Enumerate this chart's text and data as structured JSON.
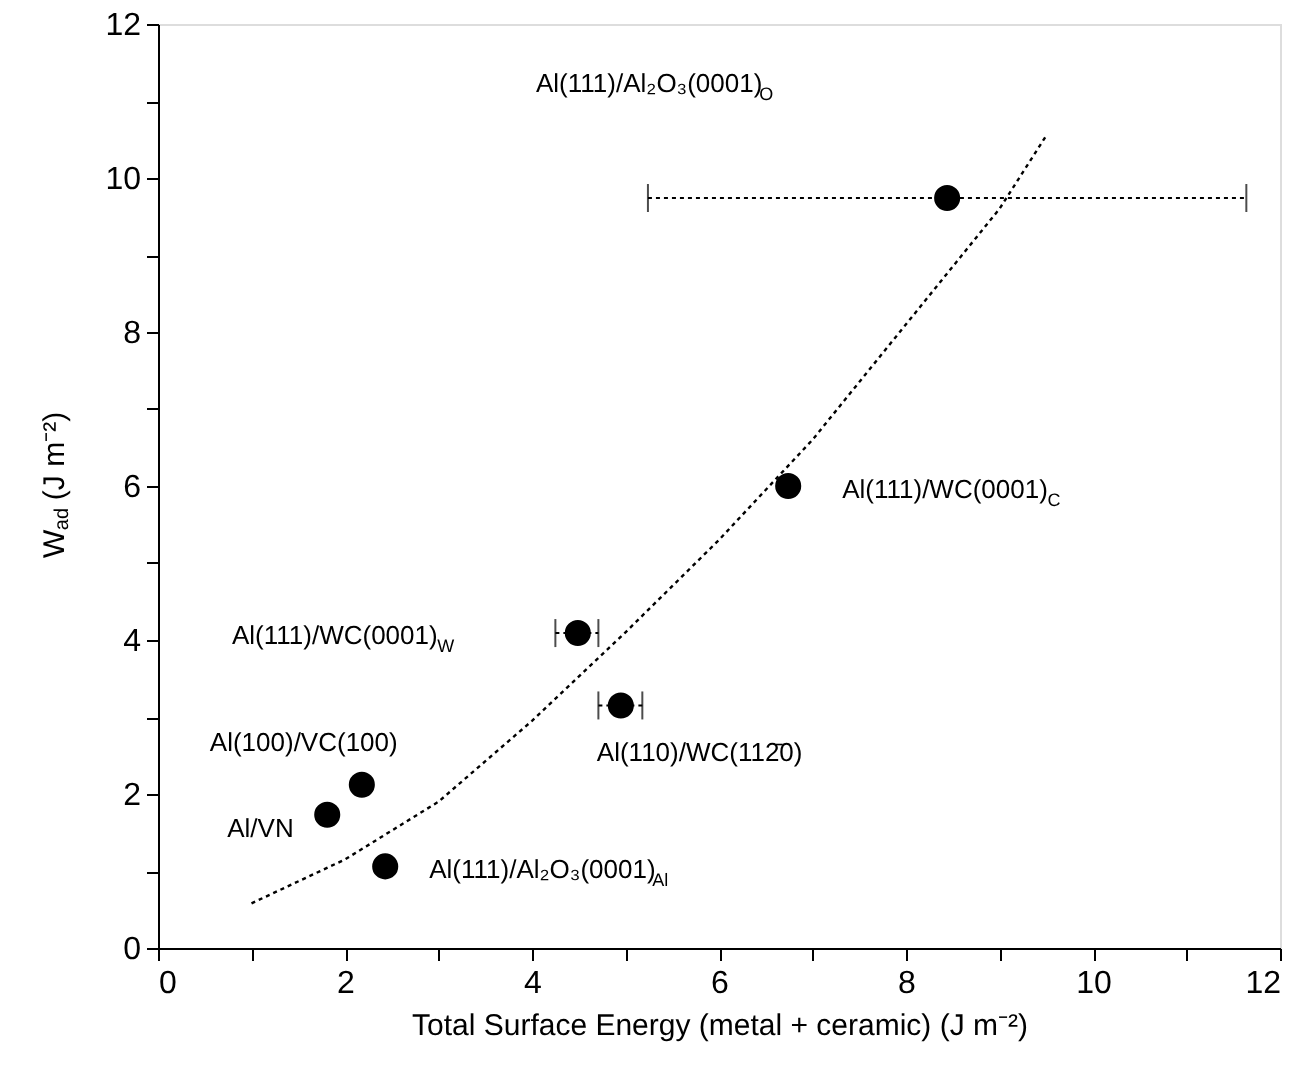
{
  "chart_data": {
    "type": "scatter",
    "xlabel": "Total Surface Energy (metal + ceramic) (J m⁻²)",
    "ylabel": "W$_{ad}$ (J m⁻²)",
    "xlim": [
      0,
      12
    ],
    "ylim": [
      0,
      12
    ],
    "xticks": [
      0,
      {
        "value": 1,
        "label": null
      },
      2,
      {
        "value": 3,
        "label": null
      },
      4,
      {
        "value": 5,
        "label": null
      },
      6,
      {
        "value": 7,
        "label": null
      },
      8,
      {
        "value": 9,
        "label": null
      },
      10,
      {
        "value": 11,
        "label": null
      },
      12
    ],
    "yticks": [
      0,
      {
        "value": 1,
        "label": null
      },
      2,
      {
        "value": 3,
        "label": null
      },
      4,
      {
        "value": 5,
        "label": null
      },
      6,
      {
        "value": 7,
        "label": null
      },
      8,
      {
        "value": 9,
        "label": null
      },
      10,
      {
        "value": 11,
        "label": null
      },
      12
    ],
    "grid": false,
    "marker": "circle",
    "series": [
      {
        "color": "#000000",
        "x": [
          1.81,
          2.18,
          2.43,
          4.49,
          4.95,
          6.74,
          8.44
        ],
        "values": [
          1.73,
          2.12,
          1.06,
          4.09,
          3.15,
          6.0,
          9.74
        ],
        "errors": [
          0.1,
          0.1,
          0.1,
          null,
          null,
          0.1,
          null
        ],
        "xerrors": [
          null,
          null,
          null,
          [
            4.25,
            4.71
          ],
          [
            4.71,
            5.18
          ],
          null,
          [
            5.24,
            11.64
          ]
        ]
      },
      {
        "type": "line",
        "marker": "none",
        "line_style": "dotted",
        "color": "#000000",
        "x": [
          1,
          2,
          3,
          4,
          5,
          6,
          7,
          8,
          9,
          9.5
        ],
        "values": [
          0.58,
          1.15,
          1.9,
          2.95,
          4.1,
          5.3,
          6.6,
          8.1,
          9.6,
          10.55
        ]
      }
    ],
    "annotations": [
      {
        "text": "Al/VN",
        "x": 1.81,
        "y": 1.73
      },
      {
        "text": "Al(100)/VC(100)",
        "x": 2.18,
        "y": 2.12
      },
      {
        "text": "Al(111)/Al₂O₃(0001)$_{Al}$",
        "x": 2.43,
        "y": 1.06
      },
      "Al(111)/WC(0001)$_{W}$",
      {
        "text": "Al(110)/WC(112̄0)",
        "x": 4.95,
        "y": 3.15
      },
      {
        "text": "Al(111)/WC(0001)$_{C}$",
        "x": 6.74,
        "y": 6.0
      },
      "Al(111)/Al₂O₃(0001)$_{O}$"
    ]
  }
}
